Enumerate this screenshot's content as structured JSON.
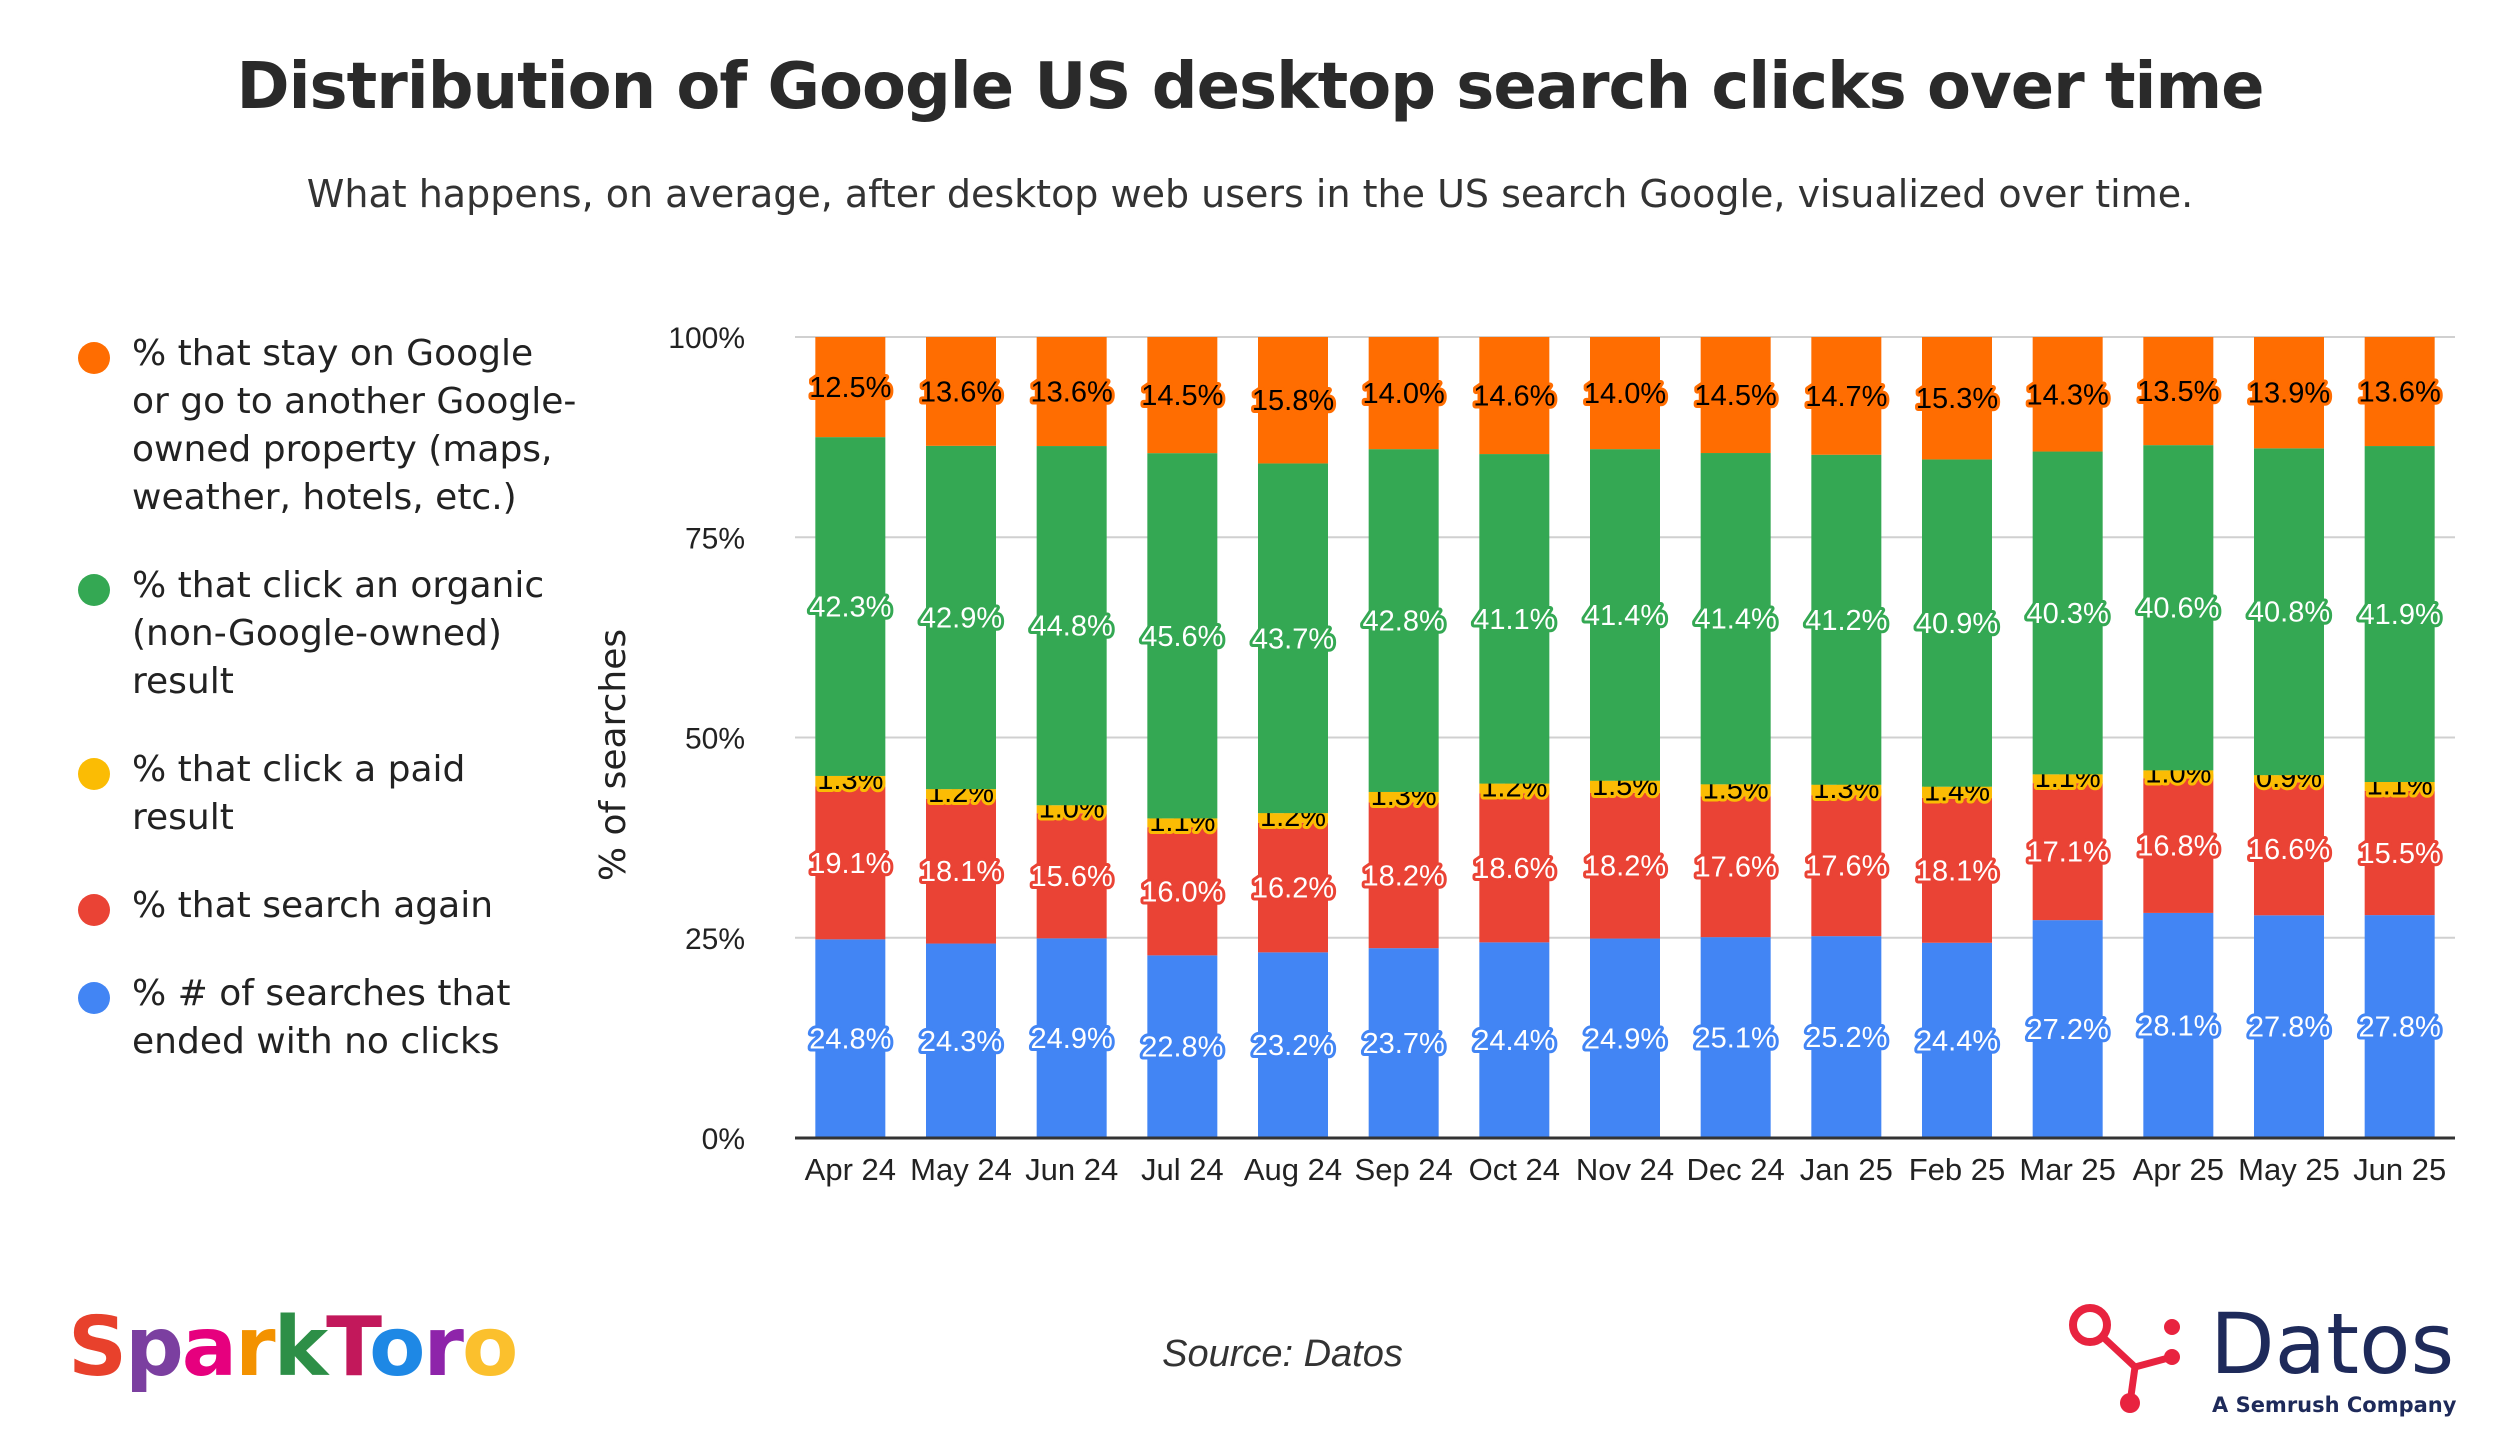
{
  "title": "Distribution of Google US desktop search clicks over time",
  "subtitle": "What happens, on average, after desktop web users in the US search Google, visualized over time.",
  "source": "Source: Datos",
  "logos": {
    "sparktoro": "SparkToro",
    "datos": "Datos",
    "datos_tagline": "A Semrush Company"
  },
  "chart_data": {
    "type": "bar",
    "stacked": true,
    "categories": [
      "Apr 24",
      "May 24",
      "Jun 24",
      "Jul 24",
      "Aug 24",
      "Sep 24",
      "Oct 24",
      "Nov 24",
      "Dec 24",
      "Jan 25",
      "Feb 25",
      "Mar 25",
      "Apr 25",
      "May 25",
      "Jun 25"
    ],
    "ylabel": "% of searches",
    "xlabel": "",
    "ylim": [
      0,
      100
    ],
    "yticks": [
      "0%",
      "25%",
      "50%",
      "75%",
      "100%"
    ],
    "grid": true,
    "legend_position": "left",
    "series": [
      {
        "name": "% # of searches that ended with no clicks",
        "color": "#4285F4",
        "label_color": "#ffffff",
        "values": [
          24.8,
          24.3,
          24.9,
          22.8,
          23.2,
          23.7,
          24.4,
          24.9,
          25.1,
          25.2,
          24.4,
          27.2,
          28.1,
          27.8,
          27.8
        ]
      },
      {
        "name": "% that search again",
        "color": "#EA4335",
        "label_color": "#ffffff",
        "values": [
          19.1,
          18.1,
          15.6,
          16.0,
          16.2,
          18.2,
          18.6,
          18.2,
          17.6,
          17.6,
          18.1,
          17.1,
          16.8,
          16.6,
          15.5
        ]
      },
      {
        "name": "% that click a paid result",
        "color": "#FBBC04",
        "label_color": "#000000",
        "values": [
          1.3,
          1.2,
          1.0,
          1.1,
          1.2,
          1.3,
          1.2,
          1.5,
          1.5,
          1.3,
          1.4,
          1.1,
          1.0,
          0.9,
          1.1
        ]
      },
      {
        "name": "% that click an organic (non-Google-owned) result",
        "color": "#34A853",
        "label_color": "#ffffff",
        "values": [
          42.3,
          42.9,
          44.8,
          45.6,
          43.7,
          42.8,
          41.1,
          41.4,
          41.4,
          41.2,
          40.9,
          40.3,
          40.6,
          40.8,
          41.9
        ]
      },
      {
        "name": "% that stay on Google or go to another Google-owned property (maps, weather, hotels, etc.)",
        "color": "#FF6D01",
        "label_color": "#000000",
        "values": [
          12.5,
          13.6,
          13.6,
          14.5,
          15.8,
          14.0,
          14.6,
          14.0,
          14.5,
          14.7,
          15.3,
          14.3,
          13.5,
          13.9,
          13.6
        ]
      }
    ]
  }
}
